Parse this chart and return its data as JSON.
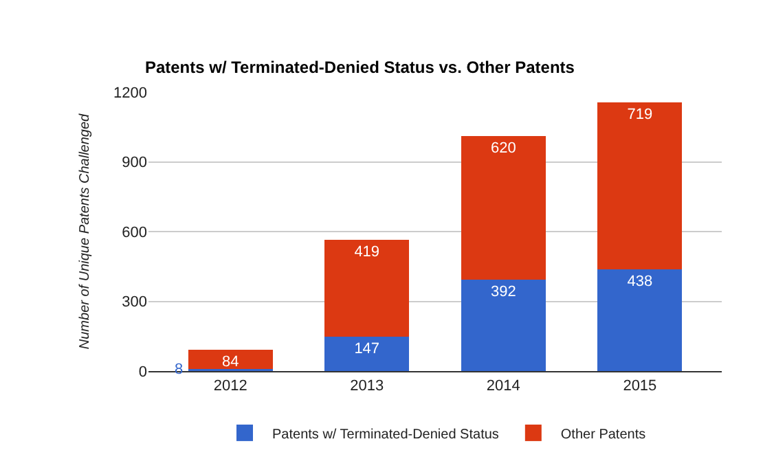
{
  "chart_data": {
    "type": "bar",
    "title": "Patents w/ Terminated-Denied Status vs. Other Patents",
    "ylabel": "Number of Unique Patents Challenged",
    "categories": [
      "2012",
      "2013",
      "2014",
      "2015"
    ],
    "series": [
      {
        "name": "Patents w/ Terminated-Denied Status",
        "color": "#3366cc",
        "values": [
          8,
          147,
          392,
          438
        ]
      },
      {
        "name": "Other Patents",
        "color": "#dc3912",
        "values": [
          84,
          419,
          620,
          719
        ]
      }
    ],
    "stacked": true,
    "data_labels": true,
    "ylim": [
      0,
      1200
    ],
    "yticks": [
      0,
      300,
      600,
      900,
      1200
    ],
    "grid": "y",
    "legend": "bottom"
  }
}
